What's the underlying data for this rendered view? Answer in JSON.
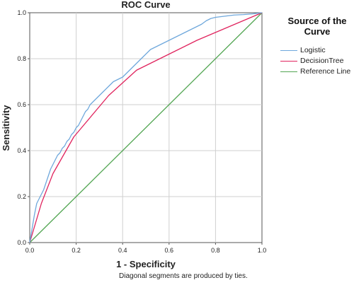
{
  "chart_data": {
    "type": "line",
    "title": "ROC Curve",
    "xlabel": "1 - Specificity",
    "ylabel": "Sensitivity",
    "xlim": [
      0,
      1
    ],
    "ylim": [
      0,
      1
    ],
    "xticks": [
      "0.0",
      "0.2",
      "0.4",
      "0.6",
      "0.8",
      "1.0"
    ],
    "yticks": [
      "0.0",
      "0.2",
      "0.4",
      "0.6",
      "0.8",
      "1.0"
    ],
    "grid": true,
    "legend": {
      "title": "Source of the Curve",
      "placement": "right"
    },
    "footnote": "Diagonal segments are produced by ties.",
    "series": [
      {
        "name": "Logistic",
        "color": "#6fa8dc",
        "x": [
          0.0,
          0.01,
          0.02,
          0.03,
          0.04,
          0.05,
          0.06,
          0.07,
          0.08,
          0.09,
          0.1,
          0.11,
          0.12,
          0.13,
          0.14,
          0.15,
          0.16,
          0.17,
          0.18,
          0.19,
          0.2,
          0.21,
          0.22,
          0.23,
          0.24,
          0.25,
          0.26,
          0.27,
          0.28,
          0.29,
          0.3,
          0.32,
          0.34,
          0.36,
          0.38,
          0.4,
          0.42,
          0.44,
          0.46,
          0.48,
          0.5,
          0.52,
          0.54,
          0.56,
          0.58,
          0.6,
          0.62,
          0.64,
          0.66,
          0.68,
          0.7,
          0.72,
          0.74,
          0.76,
          0.78,
          0.8,
          0.84,
          0.88,
          0.92,
          0.96,
          1.0
        ],
        "y": [
          0.0,
          0.06,
          0.12,
          0.17,
          0.19,
          0.21,
          0.23,
          0.26,
          0.29,
          0.32,
          0.34,
          0.36,
          0.38,
          0.39,
          0.41,
          0.42,
          0.44,
          0.45,
          0.47,
          0.48,
          0.5,
          0.51,
          0.53,
          0.55,
          0.57,
          0.58,
          0.6,
          0.61,
          0.62,
          0.63,
          0.64,
          0.66,
          0.68,
          0.7,
          0.71,
          0.72,
          0.74,
          0.76,
          0.78,
          0.8,
          0.82,
          0.84,
          0.85,
          0.86,
          0.87,
          0.88,
          0.89,
          0.9,
          0.91,
          0.92,
          0.93,
          0.94,
          0.95,
          0.965,
          0.975,
          0.98,
          0.985,
          0.99,
          0.992,
          0.995,
          1.0
        ]
      },
      {
        "name": "DecisionTree",
        "color": "#e0245e",
        "x": [
          0.0,
          0.05,
          0.1,
          0.19,
          0.34,
          0.46,
          0.58,
          0.72,
          1.0
        ],
        "y": [
          0.0,
          0.17,
          0.3,
          0.46,
          0.64,
          0.75,
          0.81,
          0.88,
          1.0
        ]
      },
      {
        "name": "Reference Line",
        "color": "#53a653",
        "x": [
          0.0,
          1.0
        ],
        "y": [
          0.0,
          1.0
        ]
      }
    ]
  }
}
